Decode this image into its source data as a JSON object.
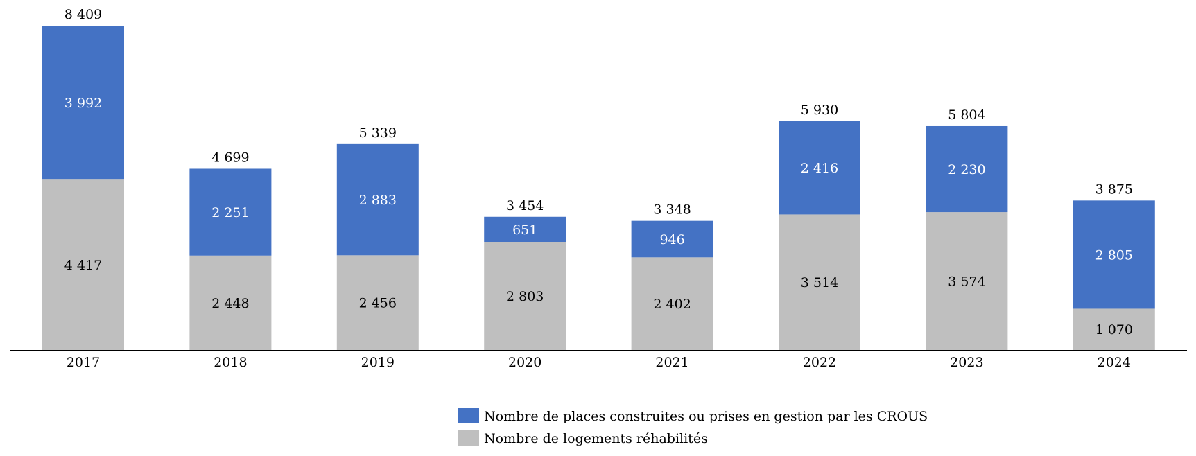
{
  "chart_data": {
    "type": "bar",
    "stacked": true,
    "categories": [
      "2017",
      "2018",
      "2019",
      "2020",
      "2021",
      "2022",
      "2023",
      "2024"
    ],
    "series": [
      {
        "name": "Nombre de logements réhabilités",
        "color": "#bfbfbf",
        "values": [
          4417,
          2448,
          2456,
          2803,
          2402,
          3514,
          3574,
          1070
        ],
        "labels": [
          "4 417",
          "2 448",
          "2 456",
          "2 803",
          "2 402",
          "3 514",
          "3 574",
          "1 070"
        ]
      },
      {
        "name": "Nombre de places construites ou prises en gestion par les CROUS",
        "color": "#4472c4",
        "values": [
          3992,
          2251,
          2883,
          651,
          946,
          2416,
          2230,
          2805
        ],
        "labels": [
          "3 992",
          "2 251",
          "2 883",
          "651",
          "946",
          "2 416",
          "2 230",
          "2 805"
        ]
      }
    ],
    "totals": [
      8409,
      4699,
      5339,
      3454,
      3348,
      5930,
      5804,
      3875
    ],
    "total_labels": [
      "8 409",
      "4 699",
      "5 339",
      "3 454",
      "3 348",
      "5 930",
      "5 804",
      "3 875"
    ],
    "title": "",
    "xlabel": "",
    "ylabel": "",
    "ylim": [
      0,
      8409
    ],
    "grid": false,
    "legend": "bottom-center"
  }
}
